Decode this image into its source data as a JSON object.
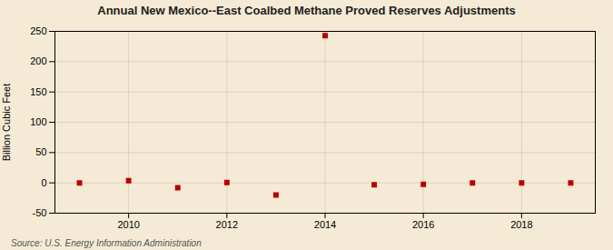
{
  "chart_data": {
    "type": "scatter",
    "title": "Annual New Mexico--East Coalbed Methane Proved Reserves Adjustments",
    "ylabel": "Billion Cubic Feet",
    "source": "Source: U.S. Energy Information Administration",
    "x": [
      2009,
      2010,
      2011,
      2012,
      2013,
      2014,
      2015,
      2016,
      2017,
      2018,
      2019
    ],
    "values": [
      0.0,
      3.5,
      -8.0,
      0.5,
      -20.0,
      243.0,
      -3.0,
      -2.5,
      0.0,
      0.0,
      0.0
    ],
    "color": "#bb0000",
    "marker": "square",
    "xlim": [
      2008.5,
      2019.5
    ],
    "xticks": [
      2010,
      2012,
      2014,
      2016,
      2018
    ],
    "ylim": [
      -50,
      250
    ],
    "yticks": [
      -50,
      0,
      50,
      100,
      150,
      200,
      250
    ],
    "grid": true
  }
}
